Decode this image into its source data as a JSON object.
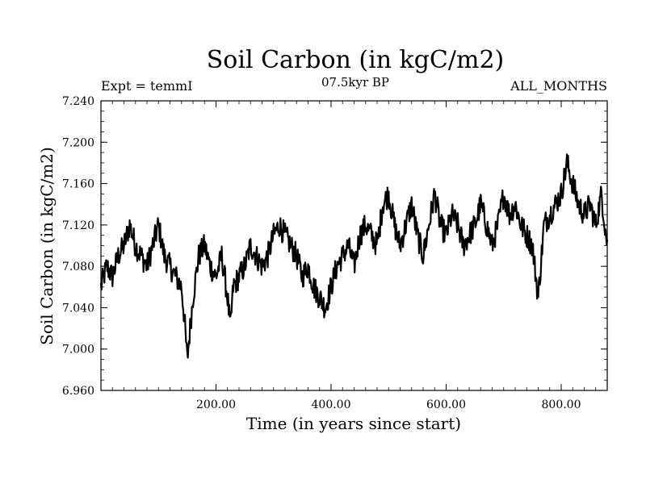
{
  "chart_data": {
    "type": "line",
    "title": "Soil Carbon (in kgC/m2)",
    "subtitle": "07.5kyr BP",
    "left_note": "Expt = temmI",
    "right_note": "ALL_MONTHS",
    "xlabel": "Time (in years since start)",
    "ylabel": "Soil Carbon (in kgC/m2)",
    "xlim": [
      0,
      880
    ],
    "ylim": [
      6.96,
      7.24
    ],
    "x_ticks": [
      200,
      400,
      600,
      800
    ],
    "x_tick_labels": [
      "200.00",
      "400.00",
      "600.00",
      "800.00"
    ],
    "y_ticks": [
      6.96,
      7.0,
      7.04,
      7.08,
      7.12,
      7.16,
      7.2,
      7.24
    ],
    "y_tick_labels": [
      "6.960",
      "7.000",
      "7.040",
      "7.080",
      "7.120",
      "7.160",
      "7.200",
      "7.240"
    ],
    "series": [
      {
        "name": "Soil Carbon",
        "color": "#000000",
        "x": [
          0,
          10,
          20,
          30,
          40,
          50,
          60,
          70,
          80,
          90,
          100,
          110,
          120,
          130,
          140,
          145,
          150,
          155,
          160,
          170,
          180,
          190,
          200,
          210,
          220,
          225,
          230,
          240,
          250,
          260,
          270,
          280,
          290,
          300,
          310,
          320,
          330,
          340,
          350,
          360,
          370,
          380,
          390,
          400,
          410,
          420,
          430,
          440,
          450,
          460,
          470,
          480,
          490,
          500,
          510,
          520,
          530,
          540,
          550,
          560,
          570,
          580,
          590,
          600,
          610,
          620,
          630,
          640,
          650,
          660,
          670,
          680,
          690,
          700,
          710,
          720,
          730,
          740,
          750,
          760,
          770,
          780,
          790,
          800,
          810,
          820,
          830,
          840,
          850,
          860,
          870,
          880
        ],
        "values": [
          7.06,
          7.08,
          7.07,
          7.09,
          7.1,
          7.12,
          7.1,
          7.09,
          7.08,
          7.1,
          7.12,
          7.09,
          7.08,
          7.07,
          7.06,
          7.03,
          6.99,
          7.02,
          7.05,
          7.09,
          7.1,
          7.08,
          7.07,
          7.09,
          7.05,
          7.02,
          7.06,
          7.07,
          7.08,
          7.1,
          7.09,
          7.08,
          7.09,
          7.11,
          7.12,
          7.11,
          7.1,
          7.09,
          7.07,
          7.08,
          7.06,
          7.05,
          7.04,
          7.06,
          7.08,
          7.09,
          7.1,
          7.08,
          7.11,
          7.12,
          7.11,
          7.1,
          7.14,
          7.15,
          7.12,
          7.1,
          7.12,
          7.14,
          7.11,
          7.09,
          7.12,
          7.15,
          7.12,
          7.11,
          7.13,
          7.12,
          7.1,
          7.11,
          7.12,
          7.14,
          7.12,
          7.1,
          7.12,
          7.15,
          7.13,
          7.14,
          7.12,
          7.11,
          7.1,
          7.05,
          7.12,
          7.13,
          7.14,
          7.15,
          7.18,
          7.16,
          7.14,
          7.13,
          7.14,
          7.12,
          7.15,
          7.1
        ],
        "noise_amplitude": 0.012
      }
    ]
  }
}
